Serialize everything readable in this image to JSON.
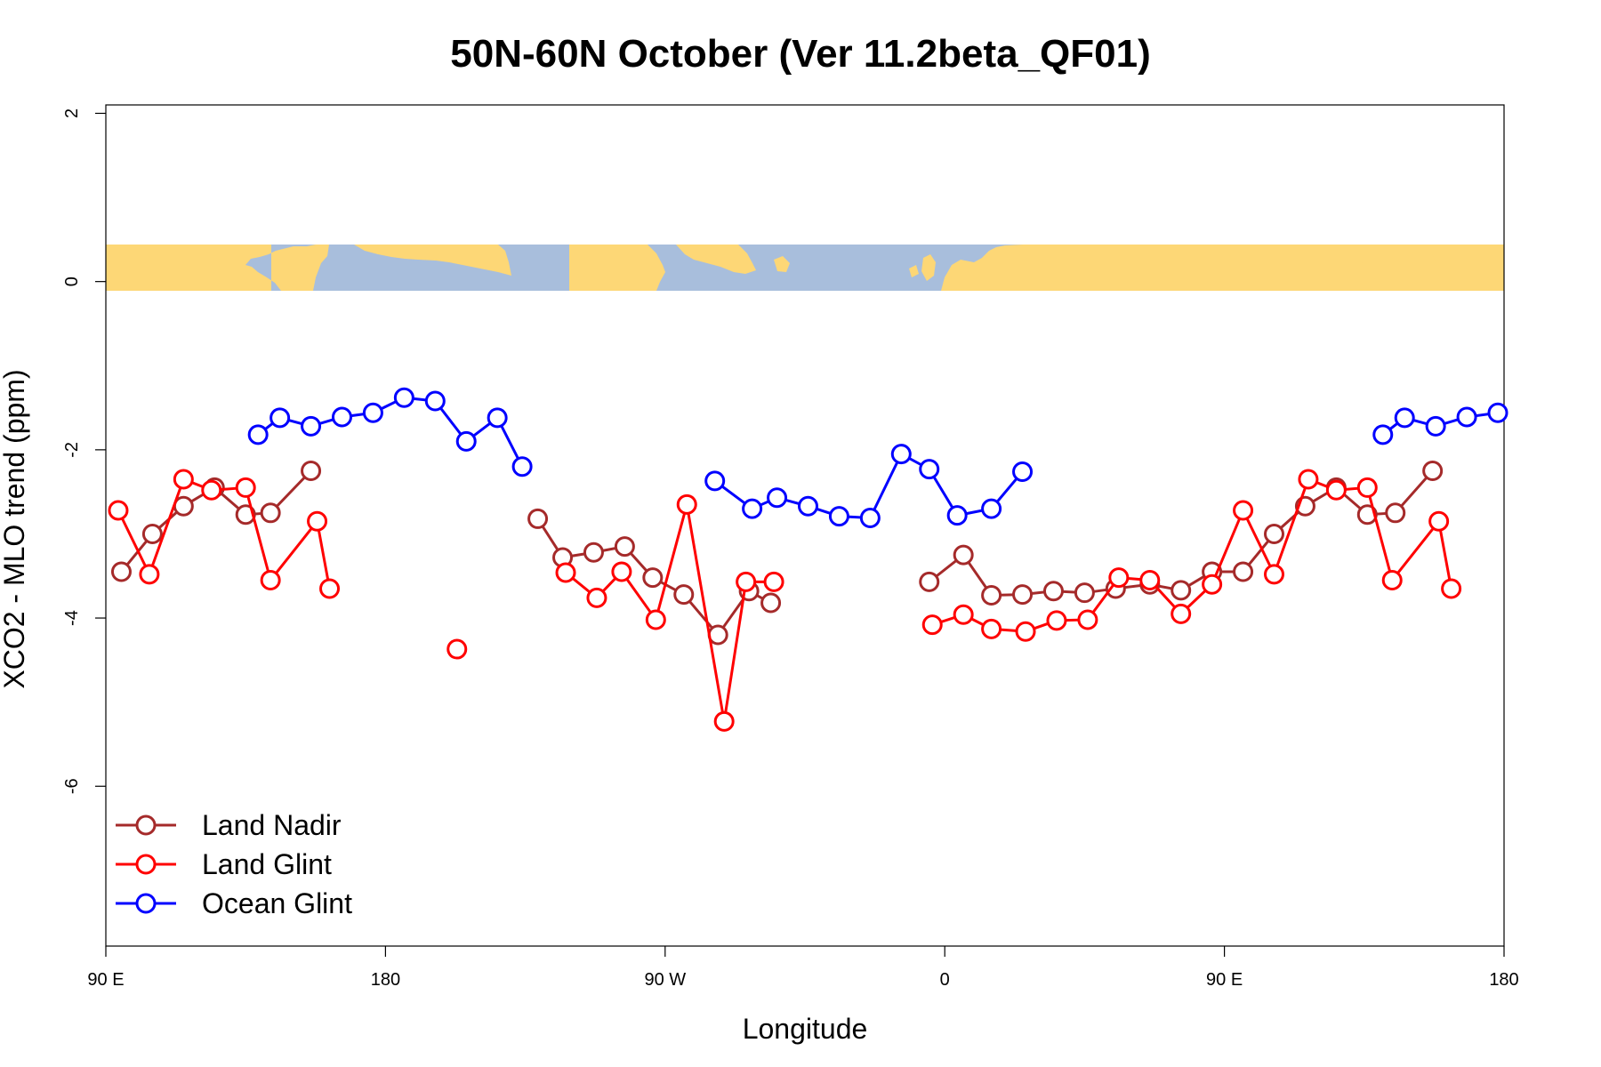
{
  "chart_data": {
    "type": "line",
    "title": "50N-60N October (Ver 11.2beta_QF01)",
    "xlabel": "Longitude",
    "ylabel": "XCO2 - MLO trend (ppm)",
    "xlim": [
      90,
      540
    ],
    "ylim": [
      -7.9,
      2.1
    ],
    "x_ticks": [
      {
        "value": 90,
        "label": "90 E"
      },
      {
        "value": 180,
        "label": "180"
      },
      {
        "value": 270,
        "label": "90 W"
      },
      {
        "value": 360,
        "label": "0"
      },
      {
        "value": 450,
        "label": "90 E"
      },
      {
        "value": 540,
        "label": "180"
      }
    ],
    "y_ticks": [
      {
        "value": 2,
        "label": "2"
      },
      {
        "value": 0,
        "label": "0"
      },
      {
        "value": -2,
        "label": "-2"
      },
      {
        "value": -4,
        "label": "-4"
      },
      {
        "value": -6,
        "label": "-6"
      }
    ],
    "map_band": {
      "y_from": -0.07,
      "y_to": 0.48,
      "land_color": "#FDD776",
      "ocean_color": "#A8BEDC"
    },
    "legend": {
      "position": "bottom-left"
    },
    "series": [
      {
        "name": "Land Nadir",
        "color": "#A52A2A",
        "segments": [
          [
            [
              95,
              -3.45
            ],
            [
              105,
              -3.0
            ],
            [
              115,
              -2.67
            ],
            [
              125,
              -2.45
            ],
            [
              135,
              -2.77
            ],
            [
              143,
              -2.75
            ],
            [
              156,
              -2.25
            ]
          ],
          [
            [
              229,
              -2.82
            ],
            [
              237,
              -3.28
            ],
            [
              247,
              -3.22
            ],
            [
              257,
              -3.15
            ],
            [
              266,
              -3.52
            ],
            [
              276,
              -3.72
            ],
            [
              287,
              -4.2
            ],
            [
              297,
              -3.68
            ],
            [
              304,
              -3.82
            ]
          ],
          [
            [
              355,
              -3.57
            ],
            [
              366,
              -3.25
            ],
            [
              375,
              -3.73
            ],
            [
              385,
              -3.72
            ],
            [
              395,
              -3.68
            ],
            [
              405,
              -3.7
            ],
            [
              415,
              -3.65
            ],
            [
              426,
              -3.6
            ],
            [
              436,
              -3.67
            ],
            [
              446,
              -3.45
            ],
            [
              456,
              -3.45
            ],
            [
              466,
              -3.0
            ],
            [
              476,
              -2.67
            ],
            [
              486,
              -2.45
            ],
            [
              496,
              -2.77
            ],
            [
              505,
              -2.75
            ],
            [
              517,
              -2.25
            ]
          ]
        ]
      },
      {
        "name": "Land Glint",
        "color": "#FF0000",
        "segments": [
          [
            [
              94,
              -2.72
            ],
            [
              104,
              -3.48
            ],
            [
              115,
              -2.35
            ],
            [
              124,
              -2.48
            ],
            [
              135,
              -2.45
            ],
            [
              143,
              -3.55
            ],
            [
              158,
              -2.85
            ],
            [
              162,
              -3.65
            ]
          ],
          [
            [
              203,
              -4.37
            ]
          ],
          [
            [
              238,
              -3.46
            ],
            [
              248,
              -3.76
            ],
            [
              256,
              -3.45
            ],
            [
              267,
              -4.02
            ],
            [
              277,
              -2.65
            ],
            [
              289,
              -5.23
            ],
            [
              296,
              -3.57
            ],
            [
              305,
              -3.57
            ]
          ],
          [
            [
              356,
              -4.08
            ],
            [
              366,
              -3.96
            ],
            [
              375,
              -4.13
            ],
            [
              386,
              -4.16
            ],
            [
              396,
              -4.03
            ],
            [
              406,
              -4.02
            ],
            [
              416,
              -3.52
            ],
            [
              426,
              -3.55
            ],
            [
              436,
              -3.95
            ],
            [
              446,
              -3.6
            ],
            [
              456,
              -2.72
            ],
            [
              466,
              -3.48
            ],
            [
              477,
              -2.35
            ],
            [
              486,
              -2.48
            ],
            [
              496,
              -2.45
            ],
            [
              504,
              -3.55
            ],
            [
              519,
              -2.85
            ],
            [
              523,
              -3.65
            ]
          ]
        ]
      },
      {
        "name": "Ocean Glint",
        "color": "#0000FF",
        "segments": [
          [
            [
              139,
              -1.82
            ],
            [
              146,
              -1.62
            ],
            [
              156,
              -1.72
            ],
            [
              166,
              -1.61
            ],
            [
              176,
              -1.56
            ],
            [
              186,
              -1.38
            ],
            [
              196,
              -1.42
            ],
            [
              206,
              -1.9
            ],
            [
              216,
              -1.62
            ],
            [
              224,
              -2.2
            ]
          ],
          [
            [
              286,
              -2.37
            ],
            [
              298,
              -2.7
            ],
            [
              306,
              -2.57
            ],
            [
              316,
              -2.67
            ],
            [
              326,
              -2.79
            ],
            [
              336,
              -2.81
            ],
            [
              346,
              -2.05
            ],
            [
              355,
              -2.23
            ],
            [
              364,
              -2.78
            ],
            [
              375,
              -2.7
            ],
            [
              385,
              -2.26
            ]
          ],
          [
            [
              501,
              -1.82
            ],
            [
              508,
              -1.62
            ],
            [
              518,
              -1.72
            ],
            [
              528,
              -1.61
            ],
            [
              538,
              -1.56
            ]
          ]
        ]
      }
    ]
  }
}
